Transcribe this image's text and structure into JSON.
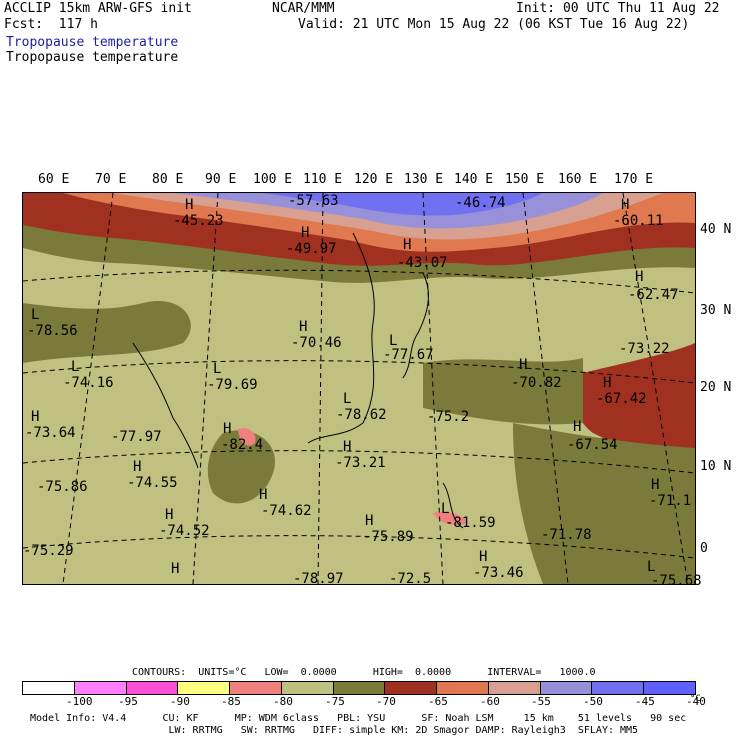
{
  "header": {
    "line1_left": "ACCLIP 15km ARW-GFS init",
    "line1_center": "NCAR/MMM",
    "line1_right": "Init: 00 UTC Thu 11 Aug 22",
    "fcst": "Fcst:  117 h",
    "valid": "Valid: 21 UTC Mon 15 Aug 22 (06 KST Tue 16 Aug 22)",
    "field_title_1": "Tropopause temperature",
    "field_title_2": "Tropopause temperature"
  },
  "longitude_labels": [
    "60 E",
    "70 E",
    "80 E",
    "90 E",
    "100 E",
    "110 E",
    "120 E",
    "130 E",
    "140 E",
    "150 E",
    "160 E",
    "170 E"
  ],
  "latitude_labels": [
    "40 N",
    "30 N",
    "20 N",
    "10 N",
    "0"
  ],
  "map_labels": [
    {
      "t": "H"
    },
    {
      "t": "-45.23"
    },
    {
      "t": "-57.63"
    },
    {
      "t": "-46.74"
    },
    {
      "t": "H"
    },
    {
      "t": "-60.11"
    },
    {
      "t": "H"
    },
    {
      "t": "-49.97"
    },
    {
      "t": "H"
    },
    {
      "t": "-43.07"
    },
    {
      "t": "H"
    },
    {
      "t": "-62.47"
    },
    {
      "t": "L"
    },
    {
      "t": "-78.56"
    },
    {
      "t": "H"
    },
    {
      "t": "-70.46"
    },
    {
      "t": "L"
    },
    {
      "t": "-77.67"
    },
    {
      "t": "-73.22"
    },
    {
      "t": "L"
    },
    {
      "t": "-74.16"
    },
    {
      "t": "L"
    },
    {
      "t": "-79.69"
    },
    {
      "t": "H"
    },
    {
      "t": "-70.82"
    },
    {
      "t": "H"
    },
    {
      "t": "-67.42"
    },
    {
      "t": "L"
    },
    {
      "t": "-78.62"
    },
    {
      "t": "-75.2"
    },
    {
      "t": "H"
    },
    {
      "t": "-73.64"
    },
    {
      "t": "-77.97"
    },
    {
      "t": "H"
    },
    {
      "t": "-82.4"
    },
    {
      "t": "H"
    },
    {
      "t": "-67.54"
    },
    {
      "t": "H"
    },
    {
      "t": "-73.21"
    },
    {
      "t": "H"
    },
    {
      "t": "-74.55"
    },
    {
      "t": "-75.86"
    },
    {
      "t": "H"
    },
    {
      "t": "-71.1"
    },
    {
      "t": "H"
    },
    {
      "t": "-74.62"
    },
    {
      "t": "H"
    },
    {
      "t": "-74.52"
    },
    {
      "t": "H"
    },
    {
      "t": "L"
    },
    {
      "t": "-81.59"
    },
    {
      "t": "-75.89"
    },
    {
      "t": "-71.78"
    },
    {
      "t": "-75.29"
    },
    {
      "t": "H"
    },
    {
      "t": "-73.46"
    },
    {
      "t": "H"
    },
    {
      "t": "-78.97"
    },
    {
      "t": "-72.5"
    },
    {
      "t": "L"
    },
    {
      "t": "-75.68"
    }
  ],
  "colorbar": {
    "contours_line": "CONTOURS:  UNITS=°C   LOW=  0.0000      HIGH=  0.0000      INTERVAL=   1000.0",
    "colors": [
      "#ffffff",
      "#ff80ff",
      "#ff50d8",
      "#ffff80",
      "#f08080",
      "#c0c080",
      "#7a7a3a",
      "#a03020",
      "#e07850",
      "#d8a090",
      "#9890d8",
      "#7070f0",
      "#6060ff"
    ],
    "labels": [
      "-100",
      "-95",
      "-90",
      "-85",
      "-80",
      "-75",
      "-70",
      "-65",
      "-60",
      "-55",
      "-50",
      "-45",
      "-40"
    ],
    "unit": "°C"
  },
  "footer": {
    "line1": "Model Info: V4.4      CU: KF      MP: WDM 6class   PBL: YSU      SF: Noah LSM     15 km    51 levels   90 sec",
    "line2": "                       LW: RRTMG   SW: RRTMG   DIFF: simple KM: 2D Smagor DAMP: Rayleigh3  SFLAY: MM5"
  }
}
